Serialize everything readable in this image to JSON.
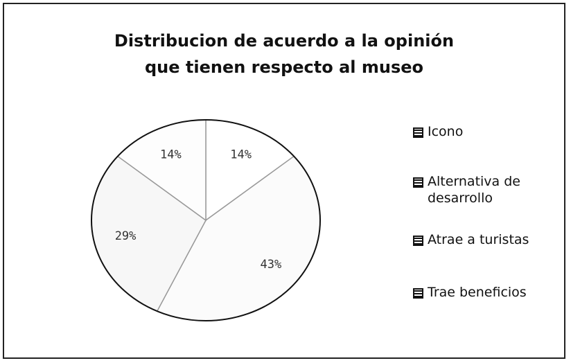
{
  "chart_data": {
    "type": "pie",
    "title": "Distribucion de acuerdo a la opinión que tienen respecto al museo",
    "categories": [
      "Icono",
      "Alternativa de desarrollo",
      "Atrae a turistas",
      "Trae beneficios"
    ],
    "values": [
      14,
      43,
      29,
      14
    ],
    "value_labels": [
      "14%",
      "43%",
      "29%",
      "14%"
    ],
    "colors": [
      "#ffffff",
      "#fbfbfb",
      "#f7f7f7",
      "#fdfdfd"
    ],
    "legend": "right"
  }
}
